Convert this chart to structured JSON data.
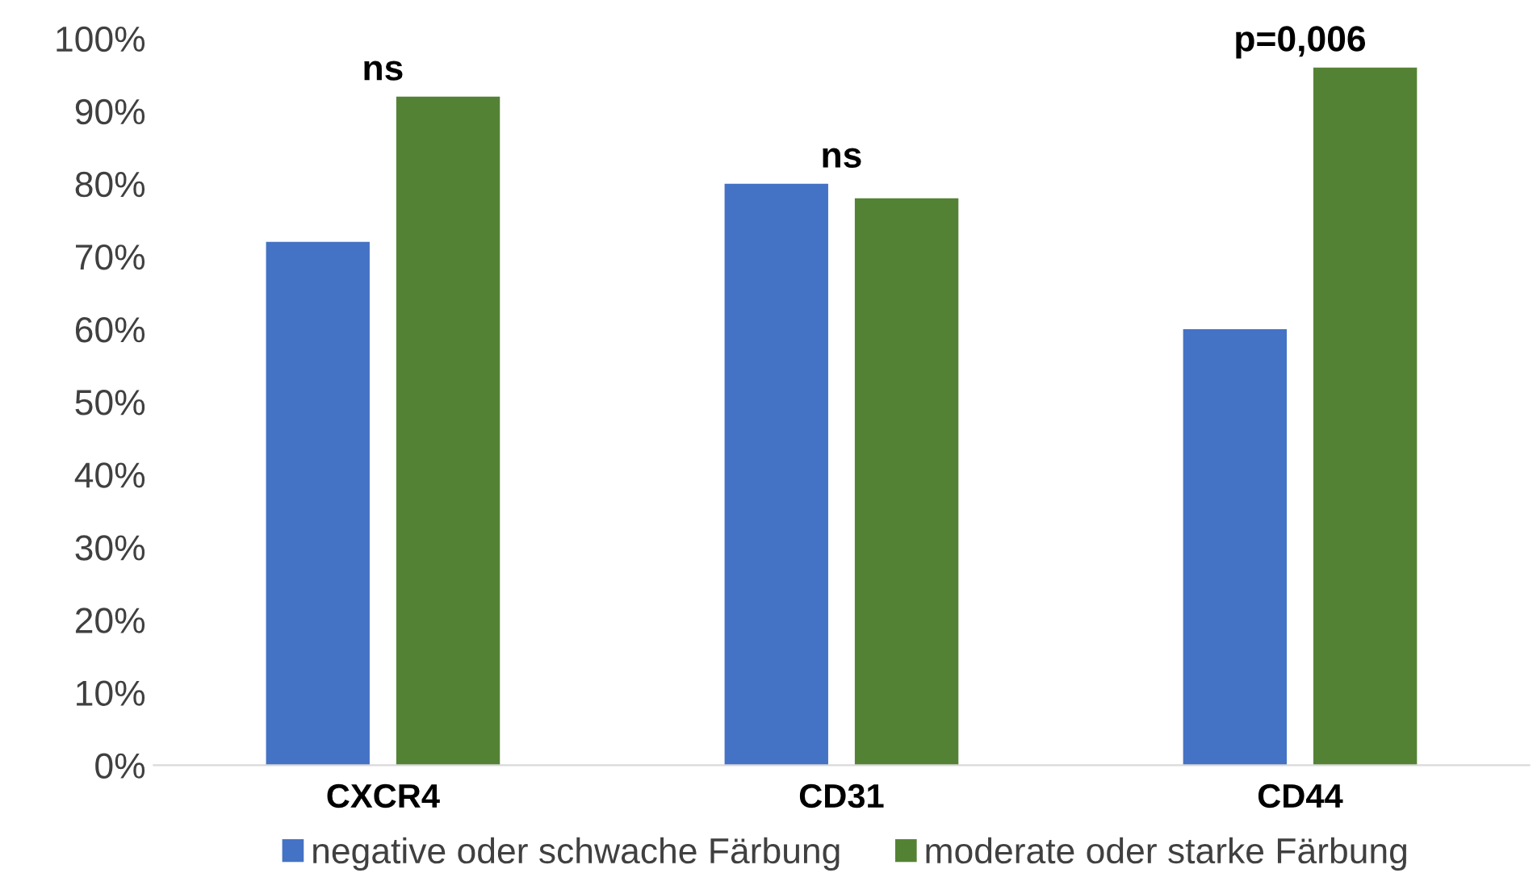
{
  "chart_data": {
    "type": "bar",
    "categories": [
      "CXCR4",
      "CD31",
      "CD44"
    ],
    "series": [
      {
        "name": "negative oder schwache Färbung",
        "color": "#4472c4",
        "values": [
          72,
          80,
          60
        ]
      },
      {
        "name": "moderate oder starke Färbung",
        "color": "#548235",
        "values": [
          92,
          78,
          96
        ]
      }
    ],
    "ylim": [
      0,
      100
    ],
    "yticks": [
      {
        "value": 0,
        "label": "0%"
      },
      {
        "value": 10,
        "label": "10%"
      },
      {
        "value": 20,
        "label": "20%"
      },
      {
        "value": 30,
        "label": "30%"
      },
      {
        "value": 40,
        "label": "40%"
      },
      {
        "value": 50,
        "label": "50%"
      },
      {
        "value": 60,
        "label": "60%"
      },
      {
        "value": 70,
        "label": "70%"
      },
      {
        "value": 80,
        "label": "80%"
      },
      {
        "value": 90,
        "label": "90%"
      },
      {
        "value": 100,
        "label": "100%"
      }
    ],
    "annotations": [
      "ns",
      "ns",
      "p=0,006"
    ],
    "legend": "bottom",
    "grid": false
  }
}
